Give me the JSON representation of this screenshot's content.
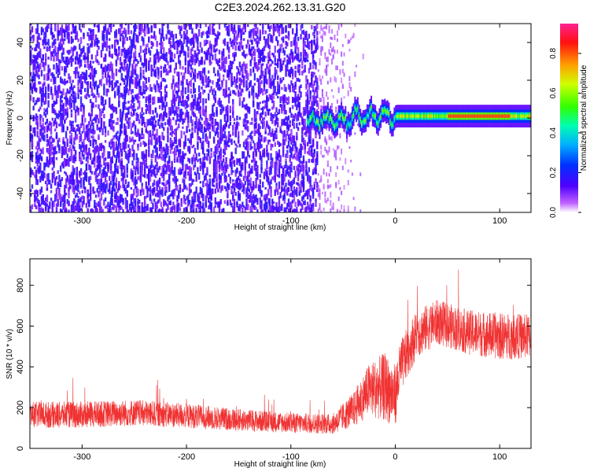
{
  "chart_data": [
    {
      "type": "heatmap",
      "title": "C2E3.2024.262.13.31.G20",
      "xlabel": "Height of straight line (km)",
      "ylabel": "Frequency (Hz)",
      "xlim": [
        -350,
        130
      ],
      "ylim": [
        -50,
        50
      ],
      "xticks": [
        -300,
        -200,
        -100,
        0,
        100
      ],
      "yticks": [
        -40,
        -20,
        0,
        20,
        40
      ],
      "colorbar": {
        "label": "Normalized spectral amplitude",
        "range": [
          0.0,
          0.95
        ],
        "ticks": [
          "0.0",
          "0.2",
          "0.4",
          "0.6",
          "0.8"
        ]
      },
      "features": {
        "noise_region_x": [
          -350,
          -75
        ],
        "fading_noise_x": [
          -75,
          -30
        ],
        "signal_center_hz": 1,
        "signal_start_x": -85,
        "descending_trace_x": [
          -275,
          -250
        ]
      }
    },
    {
      "type": "line",
      "xlabel": "Height of straight line (km)",
      "ylabel": "SNR (10 * v/v)",
      "xlim": [
        -350,
        130
      ],
      "ylim": [
        0,
        930
      ],
      "xticks": [
        -300,
        -200,
        -100,
        0,
        100
      ],
      "yticks": [
        0,
        200,
        400,
        600,
        800
      ],
      "series": [
        {
          "color": "#f03232",
          "envelope": [
            {
              "x": -350,
              "mean": 165,
              "spread": 65
            },
            {
              "x": -300,
              "mean": 165,
              "spread": 65
            },
            {
              "x": -250,
              "mean": 175,
              "spread": 65
            },
            {
              "x": -200,
              "mean": 160,
              "spread": 60
            },
            {
              "x": -150,
              "mean": 140,
              "spread": 55
            },
            {
              "x": -100,
              "mean": 125,
              "spread": 50
            },
            {
              "x": -60,
              "mean": 120,
              "spread": 50
            },
            {
              "x": -40,
              "mean": 190,
              "spread": 85
            },
            {
              "x": -25,
              "mean": 290,
              "spread": 130
            },
            {
              "x": -10,
              "mean": 300,
              "spread": 170
            },
            {
              "x": 0,
              "mean": 260,
              "spread": 150
            },
            {
              "x": 5,
              "mean": 400,
              "spread": 130
            },
            {
              "x": 20,
              "mean": 560,
              "spread": 120
            },
            {
              "x": 40,
              "mean": 620,
              "spread": 110
            },
            {
              "x": 70,
              "mean": 570,
              "spread": 110
            },
            {
              "x": 100,
              "mean": 550,
              "spread": 115
            },
            {
              "x": 130,
              "mean": 550,
              "spread": 110
            }
          ]
        }
      ]
    }
  ]
}
